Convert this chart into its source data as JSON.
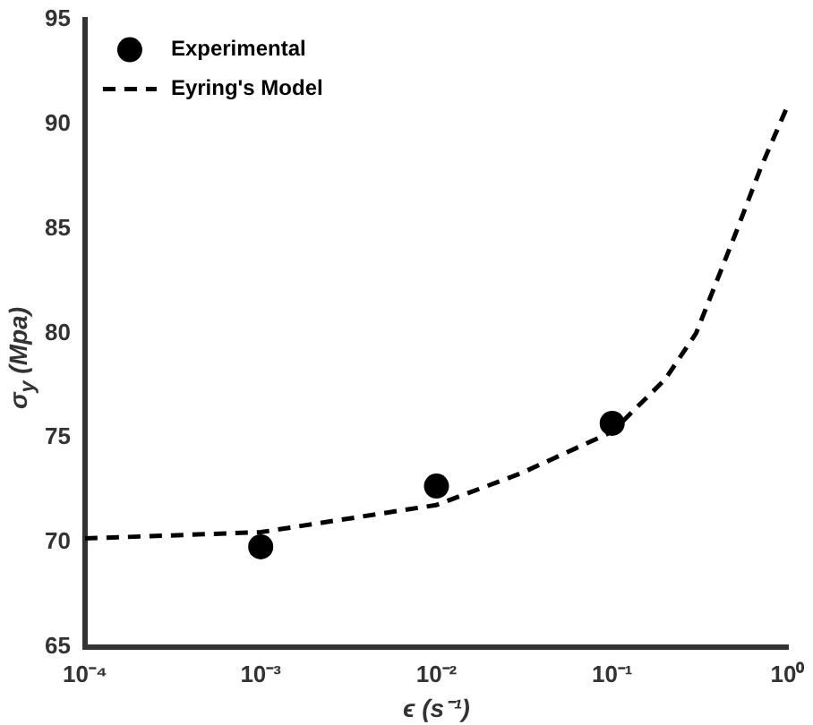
{
  "chart_data": {
    "type": "scatter",
    "xlabel": "ϵ (s⁻¹)",
    "ylabel": "σ$_{y}$ (Mpa)",
    "log": "x",
    "xlim": [
      0.0001,
      1
    ],
    "xticks": [
      {
        "value": 0.0001,
        "label": "10⁻⁴"
      },
      {
        "value": 0.001,
        "label": "10⁻³"
      },
      {
        "value": 0.01,
        "label": "10⁻²"
      },
      {
        "value": 0.1,
        "label": "10⁻¹"
      },
      {
        "value": 1,
        "label": "10⁰"
      }
    ],
    "ylim": [
      65,
      95
    ],
    "yticks": [
      65,
      70,
      75,
      80,
      85,
      90,
      95
    ],
    "grid": false,
    "legend": "top left",
    "series": [
      {
        "name": "Experimental",
        "type": "scatter",
        "color": "#000000",
        "marker": "circle",
        "x": [
          0.001,
          0.01,
          0.1
        ],
        "values": [
          69.8,
          72.7,
          75.7
        ]
      },
      {
        "name": "Eyring's Model",
        "type": "line",
        "color": "#000000",
        "marker": "none",
        "line_style": "dashed",
        "x": [
          0.0001,
          0.001,
          0.01,
          0.03,
          0.1,
          0.2,
          0.3,
          0.5,
          0.7,
          1
        ],
        "values": [
          70.2,
          70.5,
          71.8,
          73.3,
          75.3,
          77.8,
          80.0,
          84.7,
          87.9,
          90.9
        ]
      }
    ]
  }
}
